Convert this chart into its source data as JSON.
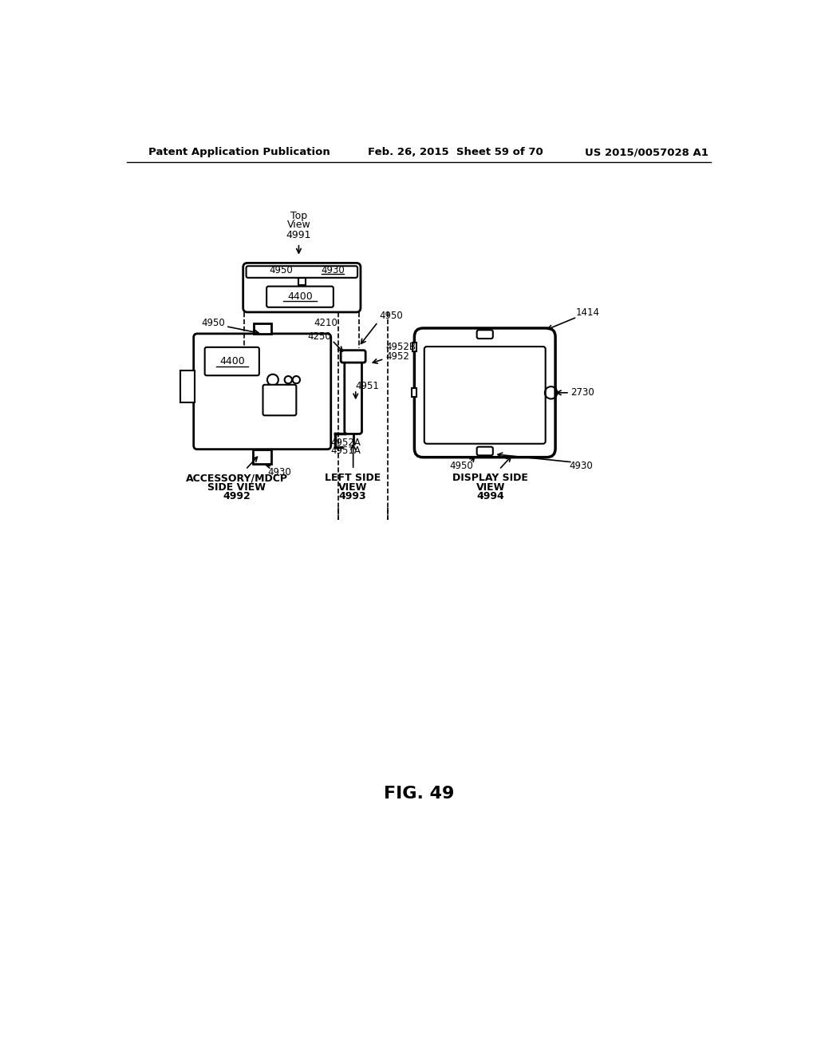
{
  "header_left": "Patent Application Publication",
  "header_mid": "Feb. 26, 2015  Sheet 59 of 70",
  "header_right": "US 2015/0057028 A1",
  "fig_label": "FIG. 49",
  "background": "#ffffff",
  "line_color": "#000000"
}
